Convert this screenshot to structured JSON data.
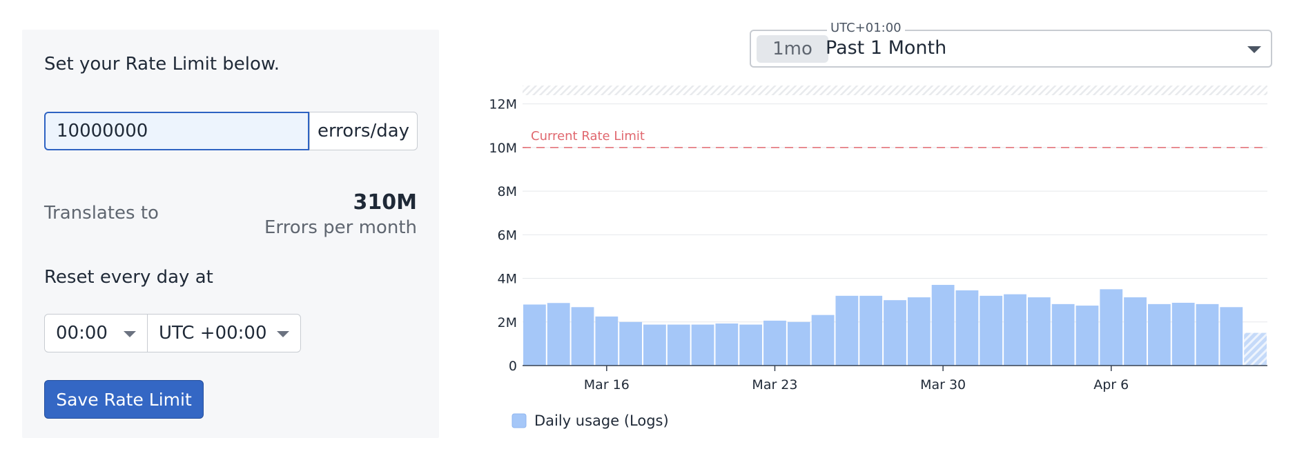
{
  "rate_limit": {
    "intro": "Set your Rate Limit below.",
    "input_value": "10000000",
    "unit": "errors/day",
    "translates_label": "Translates to",
    "monthly_value": "310M",
    "monthly_caption": "Errors per month",
    "reset_label": "Reset every day at",
    "reset_time": "00:00",
    "reset_timezone": "UTC +00:00",
    "save_label": "Save Rate Limit"
  },
  "time_range": {
    "timezone": "UTC+01:00",
    "badge": "1mo",
    "label": "Past 1 Month"
  },
  "colors": {
    "primary": "#3467c4",
    "bar": "#a5c7f8",
    "limit_line": "#e0676e",
    "panel_bg": "#f6f7f9"
  },
  "chart_data": {
    "type": "bar",
    "series": [
      {
        "name": "Daily usage (Logs)",
        "values": [
          2.8,
          2.87,
          2.68,
          2.25,
          2.0,
          1.88,
          1.88,
          1.88,
          1.93,
          1.88,
          2.06,
          2.0,
          2.32,
          3.2,
          3.2,
          3.0,
          3.13,
          3.7,
          3.45,
          3.2,
          3.27,
          3.13,
          2.82,
          2.75,
          3.5,
          3.13,
          2.82,
          2.88,
          2.82,
          2.68,
          1.5
        ]
      }
    ],
    "partial_last_bar": true,
    "x_tick_labels": [
      {
        "label": "Mar 16",
        "bar_index": 3
      },
      {
        "label": "Mar 23",
        "bar_index": 10
      },
      {
        "label": "Mar 30",
        "bar_index": 17
      },
      {
        "label": "Apr 6",
        "bar_index": 24
      }
    ],
    "y_ticks": [
      {
        "value": 0,
        "label": "0"
      },
      {
        "value": 2,
        "label": "2M"
      },
      {
        "value": 4,
        "label": "4M"
      },
      {
        "value": 6,
        "label": "6M"
      },
      {
        "value": 8,
        "label": "8M"
      },
      {
        "value": 10,
        "label": "10M"
      },
      {
        "value": 12,
        "label": "12M"
      }
    ],
    "ylim": [
      0,
      12.4
    ],
    "reference_line": {
      "value": 10,
      "label": "Current Rate Limit"
    },
    "legend": {
      "label": "Daily usage (Logs)",
      "position": "bottom-left"
    },
    "grid": true
  }
}
